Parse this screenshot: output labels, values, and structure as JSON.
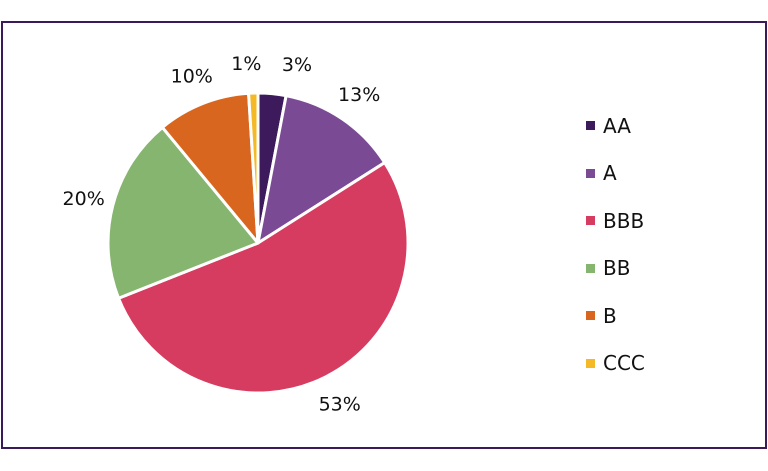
{
  "chart_data": {
    "type": "pie",
    "title": "",
    "categories": [
      "AA",
      "A",
      "BBB",
      "BB",
      "B",
      "CCC"
    ],
    "values": [
      3,
      13,
      53,
      20,
      10,
      1
    ],
    "labels": [
      "3%",
      "13%",
      "53%",
      "20%",
      "10%",
      "1%"
    ],
    "colors": [
      "#3d1a5c",
      "#7a4a94",
      "#d63c60",
      "#86b56f",
      "#d9661f",
      "#f4b925"
    ],
    "legend_position": "right"
  }
}
